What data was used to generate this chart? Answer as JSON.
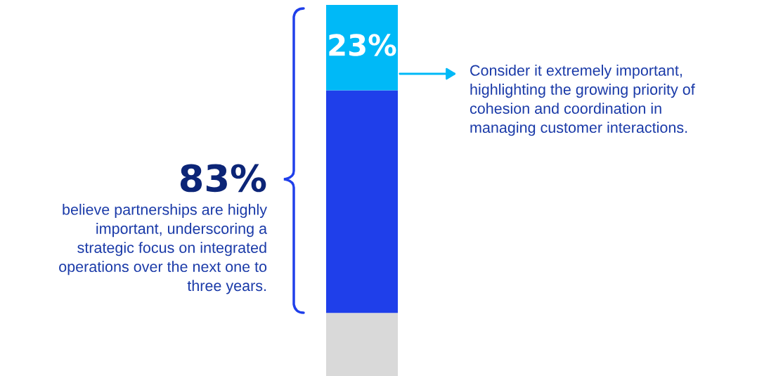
{
  "chart_data": {
    "type": "bar",
    "stacked": true,
    "tick_labels": false,
    "ylim": [
      0,
      100
    ],
    "categories": [
      null
    ],
    "series": [
      {
        "color": "#d9d9d9",
        "values": [
          17
        ]
      },
      {
        "color": "#1f3fea",
        "values": [
          60
        ]
      },
      {
        "color": "#00b9f7",
        "values": [
          23
        ],
        "value_labels": [
          "23%"
        ]
      }
    ],
    "annotations": [
      "83%",
      "believe partnerships are highly\nimportant, underscoring a\nstrategic focus on integrated\noperations over the next one to\nthree years.",
      "Consider it extremely important,\nhighlighting the growing priority of\ncohesion and coordination in\nmanaging customer interactions."
    ]
  }
}
